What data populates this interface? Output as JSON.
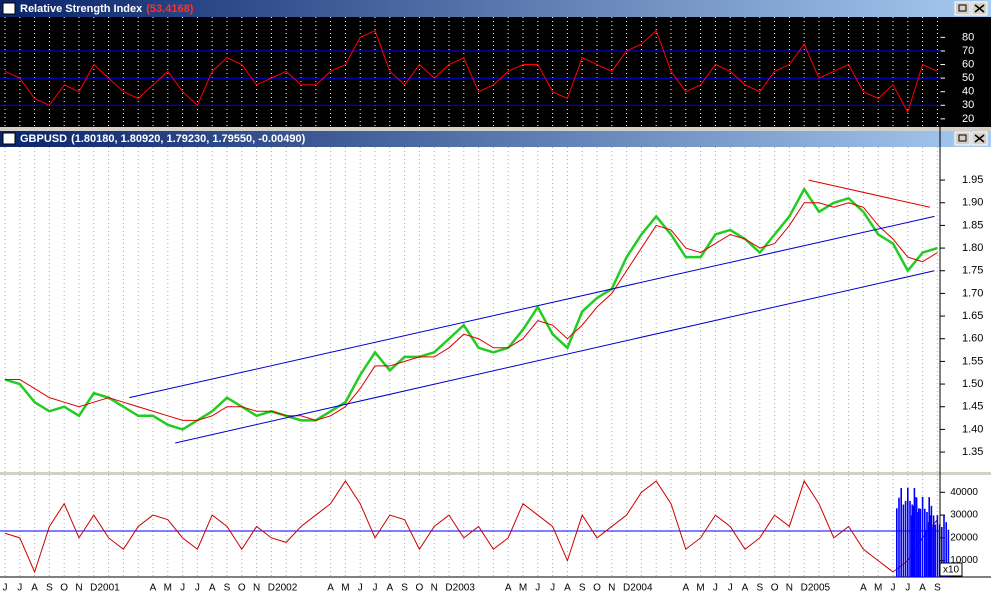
{
  "chart_data": [
    {
      "type": "line",
      "title": "Relative Strength Index",
      "value": "(53.4168)",
      "ylim": [
        14,
        95
      ],
      "yticks": [
        20,
        30,
        40,
        50,
        60,
        70,
        80
      ],
      "ref_lines": [
        30,
        50,
        70
      ],
      "ref_color": "#0000ff",
      "series": [
        {
          "color": "#ff0000",
          "values": [
            55,
            50,
            35,
            30,
            45,
            40,
            60,
            50,
            40,
            35,
            45,
            55,
            40,
            30,
            55,
            65,
            60,
            45,
            50,
            55,
            45,
            45,
            55,
            60,
            80,
            85,
            55,
            45,
            60,
            50,
            60,
            65,
            40,
            45,
            55,
            60,
            60,
            40,
            35,
            65,
            60,
            55,
            70,
            75,
            85,
            55,
            40,
            45,
            60,
            55,
            45,
            40,
            55,
            60,
            75,
            50,
            55,
            60,
            40,
            35,
            45,
            25,
            60,
            55
          ]
        }
      ]
    },
    {
      "type": "line",
      "title": "GBPUSD",
      "value": "(1.80180, 1.80920, 1.79230, 1.79550, -0.00490)",
      "ylim": [
        1.306,
        2.023
      ],
      "yticks": [
        1.35,
        {
          "value": 1.4,
          "label": "1.40"
        },
        1.45,
        {
          "value": 1.5,
          "label": "1.50"
        },
        1.55,
        {
          "value": 1.6,
          "label": "1.60"
        },
        1.65,
        {
          "value": 1.7,
          "label": "1.70"
        },
        1.75,
        {
          "value": 1.8,
          "label": "1.80"
        },
        1.85,
        {
          "value": 1.9,
          "label": "1.90"
        },
        1.95
      ],
      "series": [
        {
          "color": "#22cc22",
          "values": [
            1.51,
            1.5,
            1.46,
            1.44,
            1.45,
            1.43,
            1.48,
            1.47,
            1.45,
            1.43,
            1.43,
            1.41,
            1.4,
            1.42,
            1.44,
            1.47,
            1.45,
            1.43,
            1.44,
            1.43,
            1.42,
            1.42,
            1.44,
            1.46,
            1.52,
            1.57,
            1.53,
            1.56,
            1.56,
            1.57,
            1.6,
            1.63,
            1.58,
            1.57,
            1.58,
            1.62,
            1.67,
            1.61,
            1.58,
            1.66,
            1.69,
            1.71,
            1.78,
            1.83,
            1.87,
            1.83,
            1.78,
            1.78,
            1.83,
            1.84,
            1.82,
            1.79,
            1.83,
            1.87,
            1.93,
            1.88,
            1.9,
            1.91,
            1.88,
            1.83,
            1.81,
            1.75,
            1.79,
            1.8
          ]
        },
        {
          "color": "#dd0000",
          "values": [
            1.51,
            1.51,
            1.49,
            1.47,
            1.46,
            1.45,
            1.46,
            1.47,
            1.46,
            1.45,
            1.44,
            1.43,
            1.42,
            1.42,
            1.43,
            1.45,
            1.45,
            1.44,
            1.44,
            1.43,
            1.43,
            1.42,
            1.43,
            1.45,
            1.49,
            1.54,
            1.54,
            1.55,
            1.56,
            1.56,
            1.58,
            1.61,
            1.6,
            1.58,
            1.58,
            1.6,
            1.64,
            1.63,
            1.6,
            1.63,
            1.67,
            1.7,
            1.75,
            1.8,
            1.85,
            1.84,
            1.8,
            1.79,
            1.81,
            1.83,
            1.82,
            1.8,
            1.81,
            1.85,
            1.9,
            1.9,
            1.89,
            1.9,
            1.89,
            1.85,
            1.82,
            1.78,
            1.77,
            1.79
          ]
        }
      ],
      "trendlines": [
        {
          "color": "#0000cc",
          "x": [
            8.4,
            62.8
          ],
          "y": [
            1.47,
            1.87
          ]
        },
        {
          "color": "#0000cc",
          "x": [
            11.5,
            62.8
          ],
          "y": [
            1.37,
            1.75
          ]
        },
        {
          "color": "#dd0000",
          "x": [
            54.3,
            62.5
          ],
          "y": [
            1.95,
            1.89
          ]
        }
      ]
    },
    {
      "type": "line",
      "ylim": [
        2800,
        47600
      ],
      "yticks": [
        10000,
        20000,
        30000,
        40000
      ],
      "ref_lines": [
        23000
      ],
      "ref_color": "#0000ff",
      "scale_note": "x10",
      "categories": [
        "J",
        "J",
        "A",
        "S",
        "O",
        "N",
        "D",
        "2001",
        null,
        null,
        "A",
        "M",
        "J",
        "J",
        "A",
        "S",
        "O",
        "N",
        "D",
        "2002",
        null,
        null,
        "A",
        "M",
        "J",
        "J",
        "A",
        "S",
        "O",
        "N",
        "D",
        "2003",
        null,
        null,
        "A",
        "M",
        "J",
        "J",
        "A",
        "S",
        "O",
        "N",
        "D",
        "2004",
        null,
        null,
        "A",
        "M",
        "J",
        "J",
        "A",
        "S",
        "O",
        "N",
        "D",
        "2005",
        null,
        null,
        "A",
        "M",
        "J",
        "J",
        "A",
        "S"
      ],
      "series": [
        {
          "color": "#cc0000",
          "values": [
            22000,
            20000,
            5000,
            25000,
            35000,
            20000,
            30000,
            20000,
            15000,
            25000,
            30000,
            28000,
            20000,
            15000,
            30000,
            25000,
            15000,
            25000,
            20000,
            18000,
            25000,
            30000,
            35000,
            45000,
            35000,
            20000,
            30000,
            28000,
            15000,
            25000,
            30000,
            20000,
            25000,
            15000,
            20000,
            35000,
            30000,
            25000,
            10000,
            30000,
            20000,
            25000,
            30000,
            40000,
            45000,
            35000,
            15000,
            20000,
            30000,
            25000,
            15000,
            20000,
            30000,
            25000,
            45000,
            35000,
            20000,
            25000,
            15000,
            10000,
            5000,
            10000,
            20000,
            28000
          ]
        },
        {
          "type": "bar",
          "color": "#0000ff",
          "values": [
            null,
            null,
            null,
            null,
            null,
            null,
            null,
            null,
            null,
            null,
            null,
            null,
            null,
            null,
            null,
            null,
            null,
            null,
            null,
            null,
            null,
            null,
            null,
            null,
            null,
            null,
            null,
            null,
            null,
            null,
            null,
            null,
            null,
            null,
            null,
            null,
            null,
            null,
            null,
            null,
            null,
            null,
            null,
            null,
            null,
            null,
            null,
            null,
            null,
            null,
            null,
            null,
            null,
            null,
            null,
            null,
            null,
            null,
            null,
            null,
            null,
            42000,
            38000,
            30000
          ]
        }
      ]
    }
  ]
}
